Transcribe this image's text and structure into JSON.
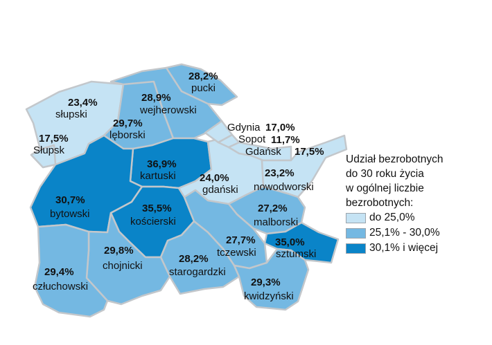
{
  "colors": {
    "low": "#c5e3f4",
    "mid": "#74b8e2",
    "high": "#0a84c8",
    "border": "#c3c7cb"
  },
  "regions": {
    "pucki": {
      "value": "28,2%",
      "name": "pucki",
      "cls": "mid"
    },
    "wejherowski": {
      "value": "28,9%",
      "name": "wejherowski",
      "cls": "mid"
    },
    "slupski": {
      "value": "23,4%",
      "name": "słupski",
      "cls": "low"
    },
    "slupsk": {
      "value": "17,5%",
      "name": "Słupsk",
      "cls": "low"
    },
    "leborski": {
      "value": "29,7%",
      "name": "lęborski",
      "cls": "mid"
    },
    "kartuski": {
      "value": "36,9%",
      "name": "kartuski",
      "cls": "high"
    },
    "bytowski": {
      "value": "30,7%",
      "name": "bytowski",
      "cls": "high"
    },
    "koscierski": {
      "value": "35,5%",
      "name": "kościerski",
      "cls": "high"
    },
    "gdanski": {
      "value": "24,0%",
      "name": "gdański",
      "cls": "low"
    },
    "nowodworski": {
      "value": "23,2%",
      "name": "nowodworski",
      "cls": "low"
    },
    "malborski": {
      "value": "27,2%",
      "name": "malborski",
      "cls": "mid"
    },
    "tczewski": {
      "value": "27,7%",
      "name": "tczewski",
      "cls": "mid"
    },
    "sztumski": {
      "value": "35,0%",
      "name": "sztumski",
      "cls": "high"
    },
    "czluchowski": {
      "value": "29,4%",
      "name": "człuchowski",
      "cls": "mid"
    },
    "chojnicki": {
      "value": "29,8%",
      "name": "chojnicki",
      "cls": "mid"
    },
    "starogardzki": {
      "value": "28,2%",
      "name": "starogardzki",
      "cls": "mid"
    },
    "kwidzynski": {
      "value": "29,3%",
      "name": "kwidzyński",
      "cls": "mid"
    },
    "gdynia": {
      "value": "17,0%",
      "name": "Gdynia",
      "cls": "low"
    },
    "sopot": {
      "value": "11,7%",
      "name": "Sopot",
      "cls": "low"
    },
    "gdansk": {
      "value": "17,5%",
      "name": "Gdańsk",
      "cls": "low"
    }
  },
  "legend": {
    "title_lines": [
      "Udział bezrobotnych",
      "do 30 roku życia",
      "w ogólnej liczbie",
      "bezrobotnych:"
    ],
    "items": [
      {
        "label": "do 25,0%",
        "cls": "low"
      },
      {
        "label": "25,1% - 30,0%",
        "cls": "mid"
      },
      {
        "label": "30,1% i więcej",
        "cls": "high"
      }
    ]
  }
}
